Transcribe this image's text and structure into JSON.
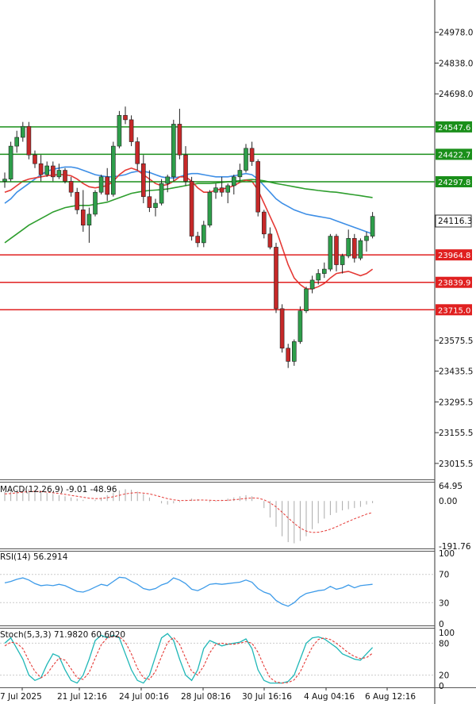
{
  "chart_data": {
    "type": "candlestick",
    "instrument_panel": {
      "y_range": [
        22950,
        25118
      ],
      "price_ticks": [
        "24978.0",
        "24838.0",
        "24698.0",
        "23575.5",
        "23435.5",
        "23295.5",
        "23155.5",
        "23015.5"
      ],
      "current_price": "24116.3",
      "levels": [
        {
          "label": "24547.6",
          "value": 24547.6,
          "color": "#1a8f1a"
        },
        {
          "label": "24422.7",
          "value": 24422.7,
          "color": "#1a8f1a"
        },
        {
          "label": "24297.8",
          "value": 24297.8,
          "color": "#1a8f1a"
        },
        {
          "label": "23964.8",
          "value": 23964.8,
          "color": "#e02020"
        },
        {
          "label": "23839.9",
          "value": 23839.9,
          "color": "#e02020"
        },
        {
          "label": "23715.0",
          "value": 23715.0,
          "color": "#e02020"
        }
      ],
      "colors": {
        "up": "#2e9e4a",
        "down": "#c62828",
        "ma_fast": "#e53935",
        "ma_mid": "#3d8ee6",
        "ma_slow": "#2e9e2e"
      },
      "candles": [
        [
          24300,
          24340,
          24270,
          24310
        ],
        [
          24310,
          24480,
          24300,
          24460
        ],
        [
          24460,
          24530,
          24430,
          24500
        ],
        [
          24500,
          24570,
          24480,
          24550
        ],
        [
          24550,
          24570,
          24400,
          24420
        ],
        [
          24420,
          24440,
          24360,
          24380
        ],
        [
          24380,
          24420,
          24300,
          24330
        ],
        [
          24330,
          24390,
          24320,
          24370
        ],
        [
          24370,
          24390,
          24300,
          24320
        ],
        [
          24320,
          24380,
          24310,
          24350
        ],
        [
          24350,
          24360,
          24290,
          24300
        ],
        [
          24300,
          24320,
          24230,
          24250
        ],
        [
          24250,
          24270,
          24150,
          24170
        ],
        [
          24170,
          24260,
          24070,
          24100
        ],
        [
          24100,
          24180,
          24020,
          24150
        ],
        [
          24150,
          24260,
          24140,
          24250
        ],
        [
          24250,
          24330,
          24240,
          24320
        ],
        [
          24320,
          24360,
          24210,
          24240
        ],
        [
          24240,
          24480,
          24230,
          24460
        ],
        [
          24460,
          24620,
          24450,
          24600
        ],
        [
          24600,
          24640,
          24560,
          24580
        ],
        [
          24580,
          24600,
          24460,
          24480
        ],
        [
          24480,
          24500,
          24350,
          24380
        ],
        [
          24380,
          24420,
          24200,
          24230
        ],
        [
          24230,
          24350,
          24160,
          24180
        ],
        [
          24180,
          24220,
          24140,
          24200
        ],
        [
          24200,
          24310,
          24190,
          24290
        ],
        [
          24290,
          24330,
          24250,
          24320
        ],
        [
          24320,
          24580,
          24300,
          24560
        ],
        [
          24560,
          24630,
          24400,
          24420
        ],
        [
          24420,
          24460,
          24280,
          24300
        ],
        [
          24300,
          24320,
          24030,
          24050
        ],
        [
          24050,
          24070,
          24000,
          24020
        ],
        [
          24020,
          24120,
          24000,
          24100
        ],
        [
          24100,
          24260,
          24090,
          24250
        ],
        [
          24250,
          24290,
          24220,
          24270
        ],
        [
          24270,
          24320,
          24230,
          24250
        ],
        [
          24250,
          24290,
          24200,
          24280
        ],
        [
          24280,
          24330,
          24240,
          24320
        ],
        [
          24320,
          24380,
          24300,
          24350
        ],
        [
          24350,
          24470,
          24340,
          24450
        ],
        [
          24450,
          24480,
          24370,
          24390
        ],
        [
          24390,
          24400,
          24140,
          24160
        ],
        [
          24160,
          24170,
          24040,
          24060
        ],
        [
          24060,
          24090,
          23990,
          24000
        ],
        [
          24000,
          24020,
          23700,
          23720
        ],
        [
          23720,
          23740,
          23520,
          23540
        ],
        [
          23540,
          23560,
          23450,
          23480
        ],
        [
          23480,
          23580,
          23460,
          23570
        ],
        [
          23570,
          23730,
          23560,
          23710
        ],
        [
          23710,
          23820,
          23700,
          23810
        ],
        [
          23810,
          23870,
          23790,
          23850
        ],
        [
          23850,
          23900,
          23830,
          23880
        ],
        [
          23880,
          23930,
          23860,
          23900
        ],
        [
          23900,
          24060,
          23890,
          24050
        ],
        [
          24050,
          24060,
          23890,
          23920
        ],
        [
          23920,
          23970,
          23880,
          23960
        ],
        [
          23960,
          24080,
          23950,
          24040
        ],
        [
          24040,
          24060,
          23930,
          23950
        ],
        [
          23950,
          24040,
          23940,
          24030
        ],
        [
          24030,
          24070,
          23980,
          24050
        ],
        [
          24050,
          24160,
          24040,
          24140
        ]
      ],
      "ma_fast": [
        24250,
        24260,
        24280,
        24300,
        24310,
        24315,
        24320,
        24325,
        24328,
        24330,
        24330,
        24325,
        24310,
        24290,
        24275,
        24270,
        24275,
        24280,
        24300,
        24330,
        24350,
        24360,
        24350,
        24330,
        24310,
        24290,
        24280,
        24285,
        24300,
        24320,
        24320,
        24300,
        24270,
        24250,
        24250,
        24260,
        24265,
        24270,
        24280,
        24295,
        24305,
        24300,
        24260,
        24200,
        24140,
        24080,
        24000,
        23920,
        23860,
        23830,
        23810,
        23810,
        23820,
        23835,
        23860,
        23880,
        23885,
        23890,
        23880,
        23870,
        23880,
        23900
      ],
      "ma_mid": [
        24200,
        24220,
        24250,
        24270,
        24290,
        24310,
        24330,
        24345,
        24355,
        24360,
        24365,
        24365,
        24360,
        24350,
        24340,
        24330,
        24325,
        24320,
        24320,
        24325,
        24330,
        24340,
        24345,
        24345,
        24340,
        24330,
        24320,
        24315,
        24315,
        24320,
        24330,
        24335,
        24335,
        24330,
        24325,
        24320,
        24320,
        24320,
        24325,
        24330,
        24335,
        24330,
        24310,
        24280,
        24250,
        24220,
        24200,
        24185,
        24170,
        24160,
        24150,
        24145,
        24140,
        24135,
        24130,
        24120,
        24110,
        24100,
        24090,
        24080,
        24070,
        24060
      ],
      "ma_slow": [
        24020,
        24040,
        24060,
        24080,
        24100,
        24115,
        24130,
        24145,
        24160,
        24170,
        24180,
        24185,
        24190,
        24190,
        24190,
        24195,
        24200,
        24205,
        24215,
        24225,
        24235,
        24245,
        24250,
        24255,
        24258,
        24260,
        24262,
        24265,
        24270,
        24275,
        24280,
        24285,
        24290,
        24290,
        24290,
        24292,
        24295,
        24298,
        24300,
        24303,
        24306,
        24308,
        24306,
        24302,
        24296,
        24290,
        24285,
        24280,
        24275,
        24270,
        24265,
        24262,
        24258,
        24255,
        24252,
        24250,
        24246,
        24242,
        24238,
        24234,
        24230,
        24226
      ]
    },
    "macd_panel": {
      "label": "MACD(12,26,9) -9.01 -48.96",
      "ticks": [
        "64.95",
        "0.00",
        "-191.76"
      ],
      "y_range": [
        -191.76,
        64.95
      ],
      "histogram": [
        40,
        45,
        50,
        52,
        50,
        45,
        40,
        35,
        30,
        25,
        20,
        15,
        10,
        5,
        0,
        5,
        15,
        25,
        35,
        45,
        50,
        48,
        40,
        30,
        15,
        0,
        -10,
        -15,
        -10,
        -5,
        5,
        10,
        8,
        0,
        -5,
        -3,
        5,
        10,
        15,
        20,
        25,
        20,
        0,
        -30,
        -70,
        -110,
        -150,
        -175,
        -180,
        -170,
        -150,
        -120,
        -95,
        -75,
        -60,
        -50,
        -40,
        -35,
        -30,
        -25,
        -15,
        -9
      ],
      "signal": [
        30,
        32,
        35,
        38,
        40,
        41,
        40,
        38,
        35,
        32,
        28,
        24,
        20,
        16,
        12,
        10,
        11,
        14,
        18,
        24,
        30,
        34,
        36,
        34,
        30,
        24,
        17,
        10,
        5,
        2,
        2,
        3,
        4,
        4,
        3,
        2,
        2,
        3,
        5,
        8,
        11,
        13,
        12,
        5,
        -8,
        -25,
        -48,
        -72,
        -95,
        -115,
        -128,
        -134,
        -133,
        -128,
        -120,
        -110,
        -98,
        -87,
        -76,
        -66,
        -56,
        -49
      ]
    },
    "rsi_panel": {
      "label": "RSI(14) 56.2914",
      "ticks": [
        "100",
        "70",
        "30",
        "0"
      ],
      "values": [
        58,
        60,
        63,
        65,
        62,
        57,
        54,
        55,
        54,
        56,
        54,
        50,
        46,
        45,
        48,
        52,
        56,
        54,
        60,
        66,
        65,
        60,
        56,
        50,
        48,
        50,
        55,
        58,
        65,
        62,
        57,
        49,
        47,
        51,
        56,
        57,
        56,
        57,
        58,
        59,
        62,
        59,
        50,
        45,
        42,
        33,
        28,
        25,
        30,
        38,
        43,
        45,
        47,
        48,
        53,
        49,
        51,
        55,
        51,
        54,
        55,
        56
      ]
    },
    "stoch_panel": {
      "label": "Stoch(5,3,3) 71.9820 60.6020",
      "ticks": [
        "100",
        "80",
        "20",
        "0"
      ],
      "k": [
        80,
        90,
        70,
        50,
        20,
        10,
        15,
        40,
        60,
        55,
        30,
        10,
        5,
        20,
        50,
        85,
        95,
        90,
        95,
        90,
        60,
        30,
        10,
        5,
        20,
        55,
        90,
        98,
        85,
        50,
        20,
        10,
        30,
        70,
        85,
        80,
        75,
        78,
        80,
        82,
        88,
        70,
        30,
        10,
        5,
        5,
        5,
        8,
        20,
        50,
        80,
        90,
        92,
        88,
        80,
        72,
        60,
        55,
        50,
        48,
        60,
        72
      ],
      "d": [
        75,
        82,
        80,
        70,
        47,
        27,
        15,
        22,
        38,
        52,
        48,
        32,
        15,
        12,
        25,
        52,
        77,
        90,
        93,
        92,
        82,
        60,
        33,
        15,
        12,
        27,
        55,
        81,
        91,
        78,
        52,
        27,
        20,
        37,
        62,
        78,
        80,
        78,
        78,
        80,
        83,
        80,
        63,
        37,
        15,
        7,
        5,
        6,
        11,
        26,
        50,
        73,
        87,
        90,
        87,
        80,
        71,
        62,
        55,
        51,
        53,
        61
      ]
    },
    "x_labels": [
      "7 Jul 2025",
      "21 Jul 12:16",
      "24 Jul 00:16",
      "28 Jul 08:16",
      "30 Jul 16:16",
      "4 Aug 04:16",
      "6 Aug 12:16"
    ]
  }
}
